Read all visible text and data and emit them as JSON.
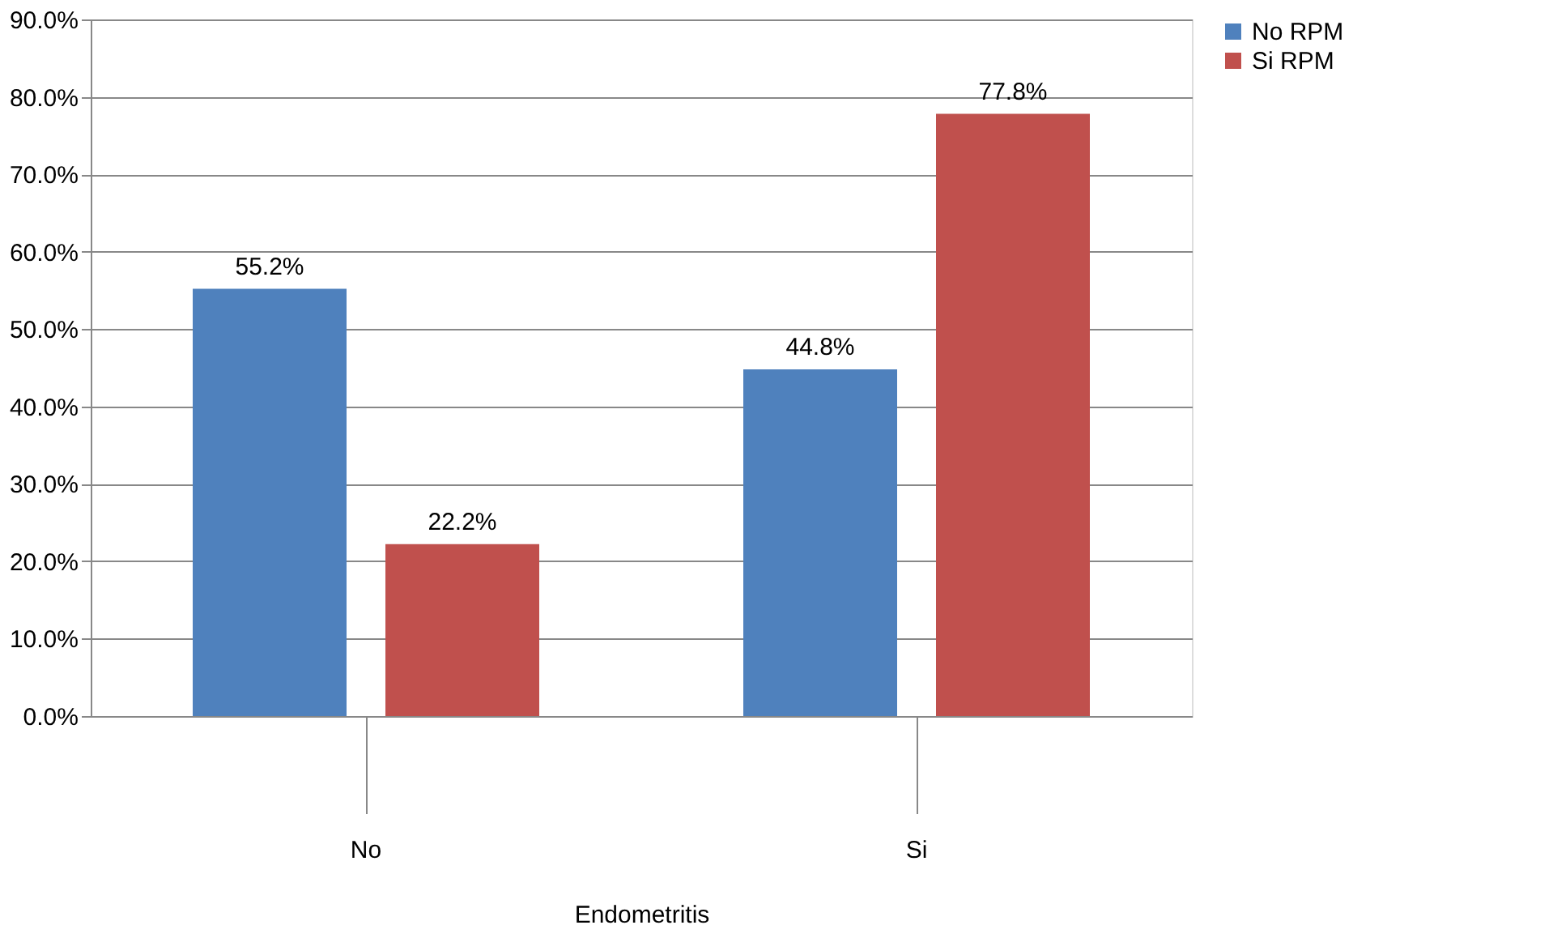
{
  "chart_data": {
    "type": "bar",
    "xlabel": "Endometritis",
    "categories": [
      "No",
      "Si"
    ],
    "series": [
      {
        "name": "No RPM",
        "color": "#4f81bd",
        "values": [
          55.2,
          44.8
        ],
        "value_labels": [
          "55.2%",
          "44.8%"
        ]
      },
      {
        "name": "Si RPM",
        "color": "#c0504d",
        "values": [
          22.2,
          77.8
        ],
        "value_labels": [
          "22.2%",
          "77.8%"
        ]
      }
    ],
    "ylim": [
      0,
      90
    ],
    "yticks": [
      {
        "value": 0,
        "label": "0.0%"
      },
      {
        "value": 10,
        "label": "10.0%"
      },
      {
        "value": 20,
        "label": "20.0%"
      },
      {
        "value": 30,
        "label": "30.0%"
      },
      {
        "value": 40,
        "label": "40.0%"
      },
      {
        "value": 50,
        "label": "50.0%"
      },
      {
        "value": 60,
        "label": "60.0%"
      },
      {
        "value": 70,
        "label": "70.0%"
      },
      {
        "value": 80,
        "label": "80.0%"
      },
      {
        "value": 90,
        "label": "90.0%"
      }
    ],
    "grid": "y",
    "legend": "right"
  }
}
